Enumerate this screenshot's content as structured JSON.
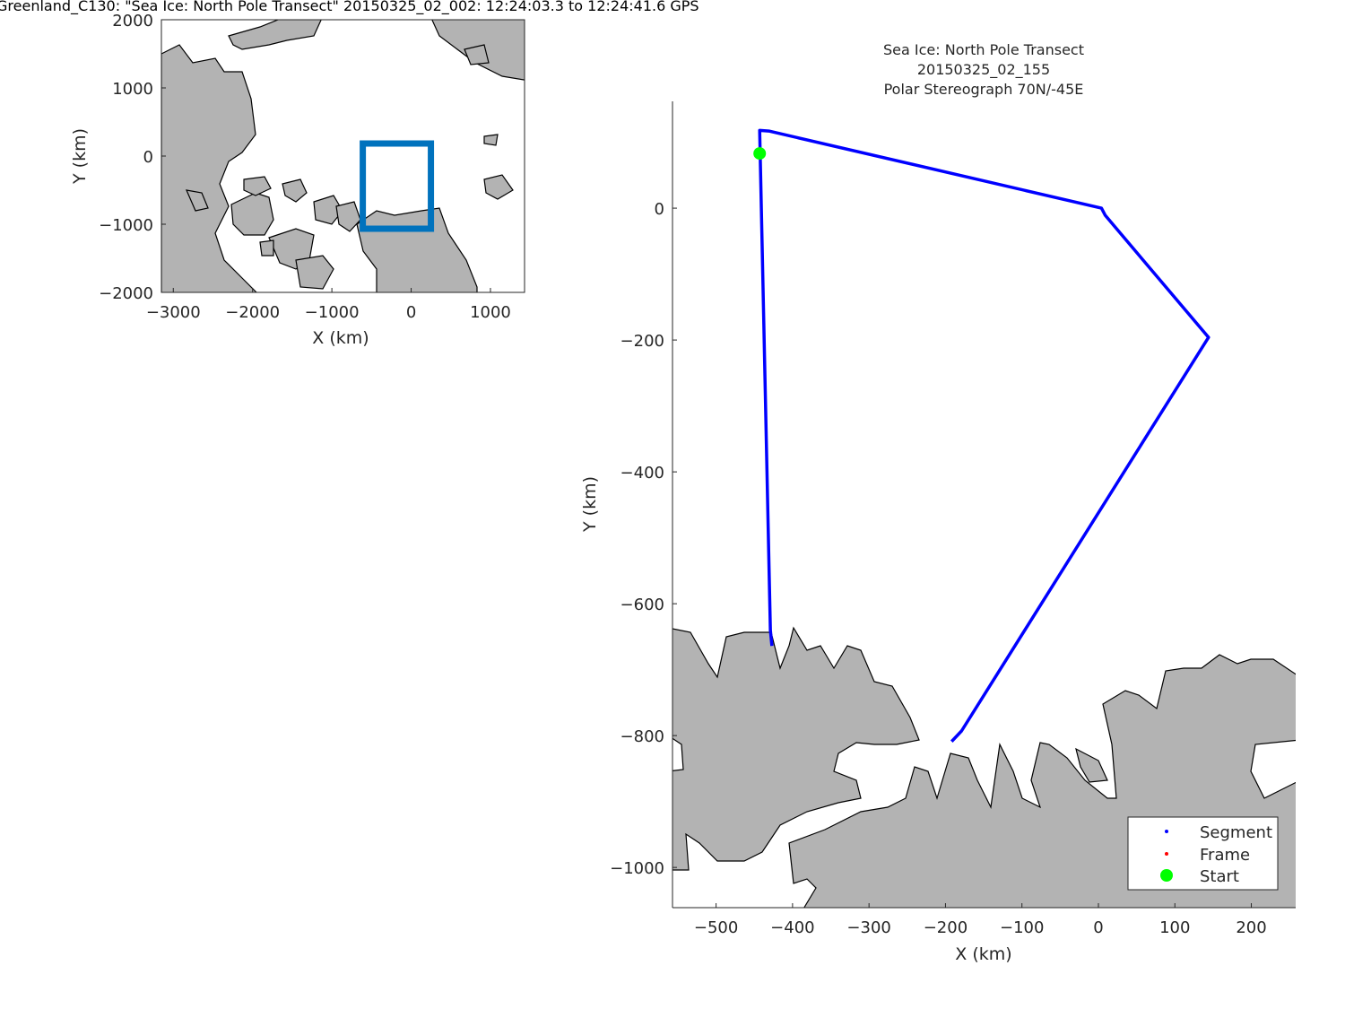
{
  "figure_title": "Greenland_C130: \"Sea Ice: North Pole Transect\"  20150325_02_002: 12:24:03.3 to 12:24:41.6 GPS",
  "colors": {
    "land": "#b3b3b3",
    "segment": "#0000ff",
    "frame": "#ff0000",
    "start": "#00ff00",
    "box": "#0072bd"
  },
  "chart_data": [
    {
      "type": "map",
      "xlabel": "X (km)",
      "ylabel": "Y (km)",
      "xlim": [
        -3150,
        1430
      ],
      "ylim": [
        -2000,
        2000
      ],
      "xticks": [
        -3000,
        -2000,
        -1000,
        0,
        1000
      ],
      "yticks": [
        2000,
        1000,
        0,
        -1000,
        -2000
      ],
      "xtick_labels": [
        "−3000",
        "−2000",
        "−1000",
        "0",
        "1000"
      ],
      "ytick_labels": [
        "2000",
        "1000",
        "0",
        "−1000",
        "−2000"
      ],
      "extent_box": {
        "x": [
          -610,
          249
        ],
        "y": [
          -1066,
          184
        ]
      }
    },
    {
      "type": "line",
      "title": [
        "Sea Ice: North Pole Transect",
        "20150325_02_155",
        "Polar Stereograph 70N/-45E"
      ],
      "xlabel": "X (km)",
      "ylabel": "Y (km)",
      "xlim": [
        -557,
        258
      ],
      "ylim": [
        -1061,
        162
      ],
      "xticks": [
        -500,
        -400,
        -300,
        -200,
        -100,
        0,
        100,
        200
      ],
      "yticks": [
        0,
        -200,
        -400,
        -600,
        -800,
        -1000
      ],
      "xtick_labels": [
        "−500",
        "−400",
        "−300",
        "−200",
        "−100",
        "0",
        "100",
        "200"
      ],
      "ytick_labels": [
        "0",
        "−200",
        "−400",
        "−600",
        "−800",
        "−1000"
      ],
      "series": [
        {
          "name": "Segment",
          "x": [
            -427,
            -429,
            -443,
            -431,
            4,
            9,
            144,
            -179,
            -192
          ],
          "y": [
            -664,
            -640,
            118,
            117,
            0,
            -11,
            -196,
            -793,
            -809
          ]
        },
        {
          "name": "Frame",
          "x": [],
          "y": []
        },
        {
          "name": "Start",
          "x": [
            -443
          ],
          "y": [
            83
          ]
        }
      ],
      "legend": {
        "entries": [
          "Segment",
          "Frame",
          "Start"
        ],
        "position": "bottom-right"
      }
    }
  ]
}
